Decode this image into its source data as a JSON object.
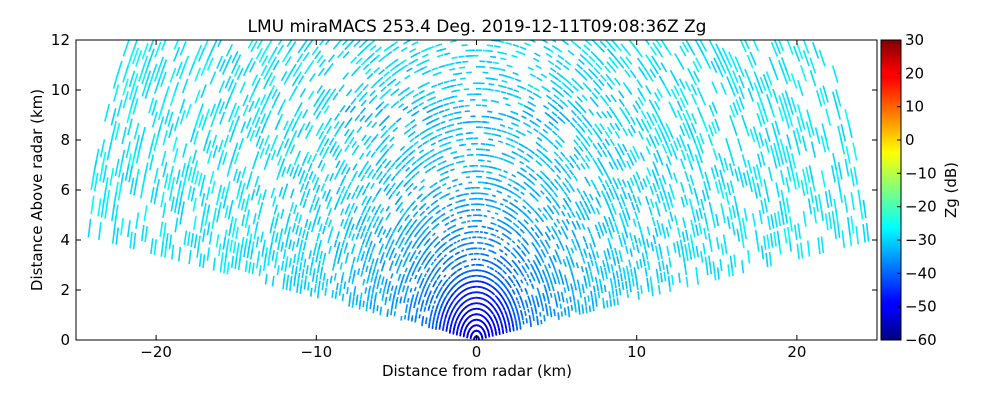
{
  "chart_data": {
    "type": "heatmap",
    "title": "LMU miraMACS 253.4 Deg. 2019-12-11T09:08:36Z  Zg",
    "xlabel": "Distance from radar (km)",
    "ylabel": "Distance Above radar  (km)",
    "xlim": [
      -25,
      25
    ],
    "ylim": [
      0,
      12
    ],
    "x_ticks": [
      -20,
      -10,
      0,
      10,
      20
    ],
    "y_ticks": [
      0,
      2,
      4,
      6,
      8,
      10,
      12
    ],
    "grid": false,
    "scan": {
      "azimuth_deg": 253.4,
      "elevation_start_deg": 10,
      "elevation_end_deg": 170,
      "max_range_km": 25,
      "features": [
        {
          "feature": "near-radar low reflectivity core",
          "x_center_km": 0,
          "height_km": 0.5,
          "zg_db": -52
        },
        {
          "feature": "cloud layer",
          "height_km": 9,
          "x_from_km": -9,
          "x_to_km": 6,
          "zg_db": -33
        },
        {
          "feature": "background echo",
          "zg_db": -28
        }
      ]
    },
    "colorbar": {
      "label": "Zg (dB)",
      "colormap": "jet",
      "range": [
        -60,
        30
      ],
      "ticks": [
        30,
        20,
        10,
        0,
        -10,
        -20,
        -30,
        -40,
        -50,
        -60
      ]
    }
  }
}
